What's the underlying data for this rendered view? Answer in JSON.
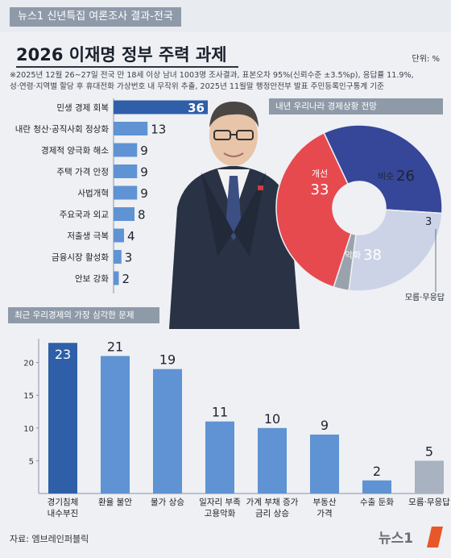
{
  "header": {
    "series_tag": "뉴스1 신년특집 여론조사 결과-전국"
  },
  "title": "2026 이재명 정부 주력 과제",
  "unit": "단위: %",
  "note_line1": "※2025년 12월 26~27일 전국 만 18세 이상 남녀 1003명 조사결과, 표본오차 95%(신뢰수준 ±3.5%p), 응답률 11.9%,",
  "note_line2": "성·연령·지역별 할당 후 휴대전화 가상번호 내 무작위 추출, 2025년 11월말 행정안전부 발표 주민등록인구통계 기준",
  "source": "자료: 엠브레인퍼블릭",
  "logo_text": "뉴스1",
  "photo_icon": "politician-photo",
  "colors": {
    "bar_dark": "#2e5fa8",
    "bar_light": "#5f93d3",
    "bar_gray": "#a9b2c0",
    "pie_improve": "#36479a",
    "pie_same": "#ccd3e6",
    "pie_unknown": "#9aa2ad",
    "pie_worse": "#e64a4f"
  },
  "chart_data": [
    {
      "type": "bar",
      "orientation": "horizontal",
      "categories": [
        "민생 경제 회복",
        "내란 청산·공직사회 정상화",
        "경제적 양극화 해소",
        "주택 가격 안정",
        "사법개혁",
        "주요국과 외교",
        "저출생 극복",
        "금융시장 활성화",
        "안보 강화"
      ],
      "values": [
        36,
        13,
        9,
        9,
        9,
        8,
        4,
        3,
        2
      ]
    },
    {
      "type": "pie",
      "title": "내년 우리나라 경제상황 전망",
      "slices": [
        {
          "label": "개선",
          "value": 33
        },
        {
          "label": "비슷",
          "value": 26
        },
        {
          "label": "모름·무응답",
          "value": 3
        },
        {
          "label": "악화",
          "value": 38
        }
      ]
    },
    {
      "type": "bar",
      "title": "최근 우리경제의 가장 심각한 문제",
      "categories": [
        [
          "경기침체",
          "내수부진"
        ],
        [
          "환율 불안"
        ],
        [
          "물가 상승"
        ],
        [
          "일자리 부족",
          "고용악화"
        ],
        [
          "가계 부채 증가",
          "금리 상승"
        ],
        [
          "부동산",
          "가격"
        ],
        [
          "수출 둔화"
        ],
        [
          "모름·무응답"
        ]
      ],
      "values": [
        23,
        21,
        19,
        11,
        10,
        9,
        2,
        5
      ],
      "yticks": [
        5,
        10,
        15,
        20
      ],
      "ylim": [
        0,
        25
      ]
    }
  ]
}
